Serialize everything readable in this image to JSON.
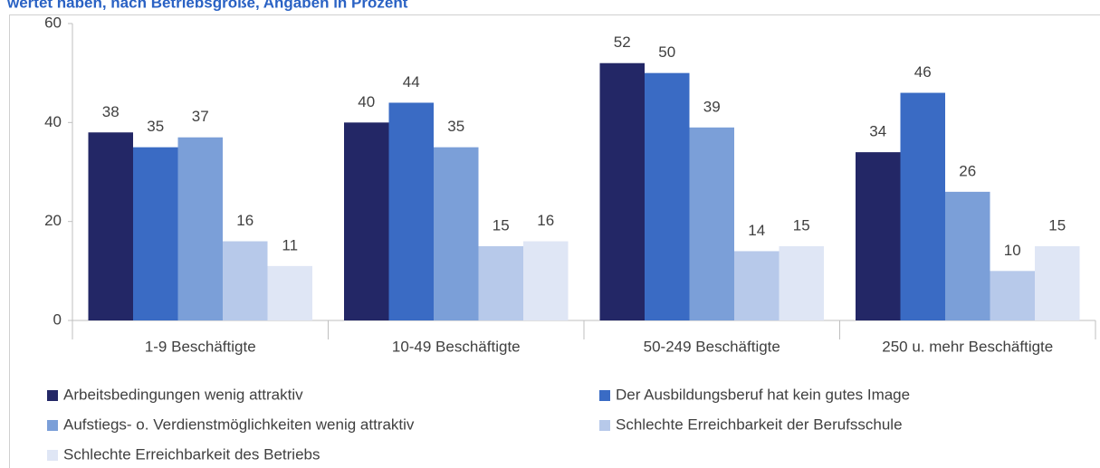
{
  "chart_data": {
    "type": "bar",
    "title": "wertet haben, nach Betriebsgröße, Angaben in Prozent",
    "categories": [
      "1-9 Beschäftigte",
      "10-49 Beschäftigte",
      "50-249 Beschäftigte",
      "250 u. mehr Beschäftigte"
    ],
    "series": [
      {
        "name": "Arbeitsbedingungen wenig attraktiv",
        "color": "#232766",
        "values": [
          38,
          40,
          52,
          34
        ]
      },
      {
        "name": "Der Ausbildungsberuf hat kein gutes Image",
        "color": "#3a6bc4",
        "values": [
          35,
          44,
          50,
          46
        ]
      },
      {
        "name": "Aufstiegs- o. Verdienstmöglichkeiten wenig attraktiv",
        "color": "#7b9fd8",
        "values": [
          37,
          35,
          39,
          26
        ]
      },
      {
        "name": "Schlechte Erreichbarkeit der Berufsschule",
        "color": "#b7c9ea",
        "values": [
          16,
          15,
          14,
          10
        ]
      },
      {
        "name": "Schlechte Erreichbarkeit des Betriebs",
        "color": "#dfe6f5",
        "values": [
          11,
          16,
          15,
          15
        ]
      }
    ],
    "ylim": [
      0,
      60
    ],
    "yticks": [
      0,
      20,
      40,
      60
    ],
    "grid": false,
    "legend": "bottom"
  }
}
